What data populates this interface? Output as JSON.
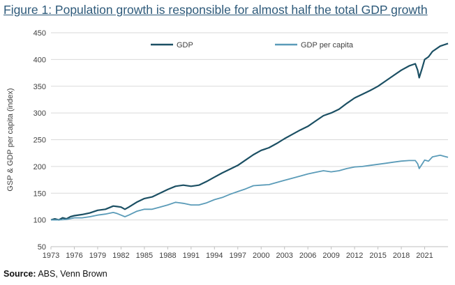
{
  "figure": {
    "title": "Figure 1: Population growth is responsible for almost half the total GDP growth",
    "source_label": "Source:",
    "source_text": " ABS, Venn Brown"
  },
  "colors": {
    "gdp": "#1b4f63",
    "gdp_per_capita": "#5a9bb8",
    "gridline": "#d9d9d9",
    "axis": "#bfbfbf",
    "title": "#2e5a7a"
  },
  "chart_data": {
    "type": "line",
    "title": "Figure 1: Population growth is responsible for almost half the total GDP growth",
    "xlabel": "",
    "ylabel": "GSP & GDP per capita (index)",
    "xlim": [
      1973,
      2024
    ],
    "ylim": [
      50,
      450
    ],
    "yticks": [
      50,
      100,
      150,
      200,
      250,
      300,
      350,
      400,
      450
    ],
    "xticks": [
      1973,
      1976,
      1979,
      1982,
      1985,
      1988,
      1991,
      1994,
      1997,
      2000,
      2003,
      2006,
      2009,
      2012,
      2015,
      2018,
      2021
    ],
    "grid": "horizontal",
    "legend": "top-center",
    "series": [
      {
        "name": "GDP",
        "color": "#1b4f63",
        "points": [
          [
            1973,
            100
          ],
          [
            1973.5,
            102
          ],
          [
            1974,
            100
          ],
          [
            1974.5,
            104
          ],
          [
            1975,
            102
          ],
          [
            1975.5,
            106
          ],
          [
            1976,
            108
          ],
          [
            1977,
            110
          ],
          [
            1978,
            113
          ],
          [
            1979,
            118
          ],
          [
            1980,
            120
          ],
          [
            1981,
            126
          ],
          [
            1981.5,
            125
          ],
          [
            1982,
            124
          ],
          [
            1982.5,
            120
          ],
          [
            1983,
            124
          ],
          [
            1984,
            133
          ],
          [
            1985,
            140
          ],
          [
            1986,
            143
          ],
          [
            1987,
            150
          ],
          [
            1988,
            157
          ],
          [
            1989,
            163
          ],
          [
            1990,
            165
          ],
          [
            1991,
            163
          ],
          [
            1992,
            165
          ],
          [
            1993,
            172
          ],
          [
            1994,
            180
          ],
          [
            1995,
            188
          ],
          [
            1996,
            195
          ],
          [
            1997,
            202
          ],
          [
            1998,
            212
          ],
          [
            1999,
            222
          ],
          [
            2000,
            230
          ],
          [
            2001,
            235
          ],
          [
            2002,
            243
          ],
          [
            2003,
            252
          ],
          [
            2004,
            260
          ],
          [
            2005,
            268
          ],
          [
            2006,
            275
          ],
          [
            2007,
            285
          ],
          [
            2008,
            295
          ],
          [
            2009,
            300
          ],
          [
            2010,
            307
          ],
          [
            2011,
            318
          ],
          [
            2012,
            328
          ],
          [
            2013,
            335
          ],
          [
            2014,
            342
          ],
          [
            2015,
            350
          ],
          [
            2016,
            360
          ],
          [
            2017,
            370
          ],
          [
            2018,
            380
          ],
          [
            2019,
            388
          ],
          [
            2019.8,
            392
          ],
          [
            2020.1,
            380
          ],
          [
            2020.3,
            366
          ],
          [
            2020.7,
            385
          ],
          [
            2021,
            400
          ],
          [
            2021.5,
            405
          ],
          [
            2022,
            415
          ],
          [
            2023,
            425
          ],
          [
            2024,
            430
          ]
        ]
      },
      {
        "name": "GDP per capita",
        "color": "#5a9bb8",
        "points": [
          [
            1973,
            100
          ],
          [
            1974,
            100
          ],
          [
            1975,
            101
          ],
          [
            1976,
            104
          ],
          [
            1977,
            104
          ],
          [
            1978,
            106
          ],
          [
            1979,
            109
          ],
          [
            1980,
            111
          ],
          [
            1981,
            114
          ],
          [
            1981.5,
            112
          ],
          [
            1982,
            109
          ],
          [
            1982.5,
            106
          ],
          [
            1983,
            109
          ],
          [
            1984,
            116
          ],
          [
            1985,
            120
          ],
          [
            1986,
            120
          ],
          [
            1987,
            124
          ],
          [
            1988,
            128
          ],
          [
            1989,
            133
          ],
          [
            1990,
            131
          ],
          [
            1991,
            128
          ],
          [
            1992,
            128
          ],
          [
            1993,
            132
          ],
          [
            1994,
            138
          ],
          [
            1995,
            142
          ],
          [
            1996,
            148
          ],
          [
            1997,
            153
          ],
          [
            1998,
            158
          ],
          [
            1999,
            164
          ],
          [
            2000,
            165
          ],
          [
            2001,
            166
          ],
          [
            2002,
            170
          ],
          [
            2003,
            174
          ],
          [
            2004,
            178
          ],
          [
            2005,
            182
          ],
          [
            2006,
            186
          ],
          [
            2007,
            189
          ],
          [
            2008,
            192
          ],
          [
            2009,
            190
          ],
          [
            2010,
            192
          ],
          [
            2011,
            196
          ],
          [
            2012,
            199
          ],
          [
            2013,
            200
          ],
          [
            2014,
            202
          ],
          [
            2015,
            204
          ],
          [
            2016,
            206
          ],
          [
            2017,
            208
          ],
          [
            2018,
            210
          ],
          [
            2019,
            211
          ],
          [
            2019.8,
            211
          ],
          [
            2020.1,
            205
          ],
          [
            2020.3,
            196
          ],
          [
            2020.7,
            205
          ],
          [
            2021,
            212
          ],
          [
            2021.5,
            210
          ],
          [
            2022,
            218
          ],
          [
            2023,
            221
          ],
          [
            2024,
            217
          ]
        ]
      }
    ]
  }
}
